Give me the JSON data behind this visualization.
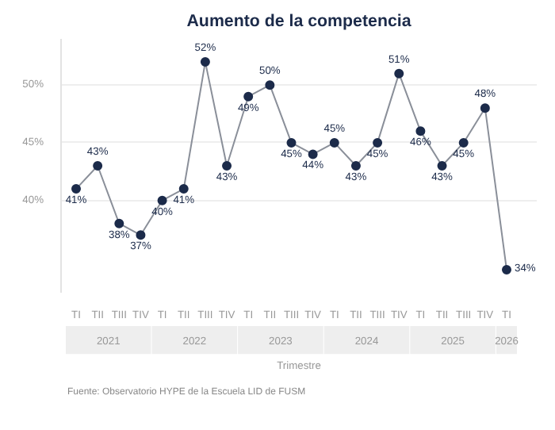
{
  "chart_data": {
    "type": "line",
    "title": "Aumento de la competencia",
    "xlabel": "Trimestre",
    "categories": [
      "TI",
      "TII",
      "TIII",
      "TIV",
      "TI",
      "TII",
      "TIII",
      "TIV",
      "TI",
      "TII",
      "TIII",
      "TIV",
      "TI",
      "TII",
      "TIII",
      "TIV",
      "TI",
      "TII",
      "TIII",
      "TIV",
      "TI"
    ],
    "series": [
      {
        "color": "#1c2b4a",
        "values": [
          41,
          43,
          38,
          37,
          40,
          41,
          52,
          43,
          49,
          50,
          45,
          44,
          45,
          43,
          45,
          51,
          46,
          43,
          45,
          48,
          34
        ]
      }
    ],
    "value_labels": [
      "41%",
      "43%",
      "38%",
      "37%",
      "40%",
      "41%",
      "52%",
      "43%",
      "49%",
      "50%",
      "45%",
      "44%",
      "45%",
      "43%",
      "45%",
      "51%",
      "46%",
      "43%",
      "45%",
      "48%",
      "34%"
    ],
    "ylim": [
      32,
      54
    ],
    "yticks": [
      {
        "value": 40,
        "label": "40%"
      },
      {
        "value": 45,
        "label": "45%"
      },
      {
        "value": 50,
        "label": "50%"
      }
    ],
    "grid": "y",
    "marker": "circle",
    "annotations": [
      "2021",
      "2022",
      "2023",
      "2024",
      "2025",
      "2026",
      "Fuente: Observatorio HYPE de la Escuela LID de FUSM"
    ]
  }
}
